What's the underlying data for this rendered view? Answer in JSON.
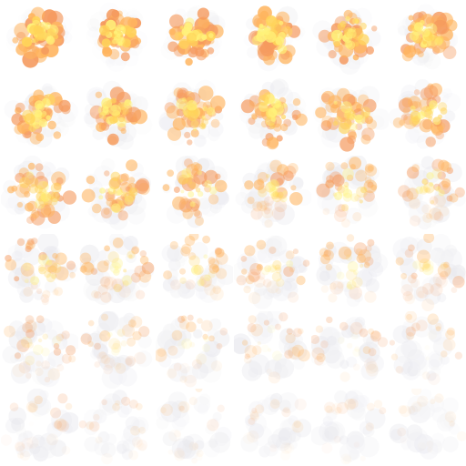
{
  "sheet": {
    "rows": 6,
    "columns": 6,
    "frame_count": 36,
    "background": "#ffffff",
    "palette": {
      "core": "#fff27a",
      "hot": "#ffd45a",
      "fire": "#ffb45e",
      "ember": "#f59a5e",
      "smoke": "#e9e9ee",
      "edge_smoke": "#f3f3f6"
    }
  }
}
